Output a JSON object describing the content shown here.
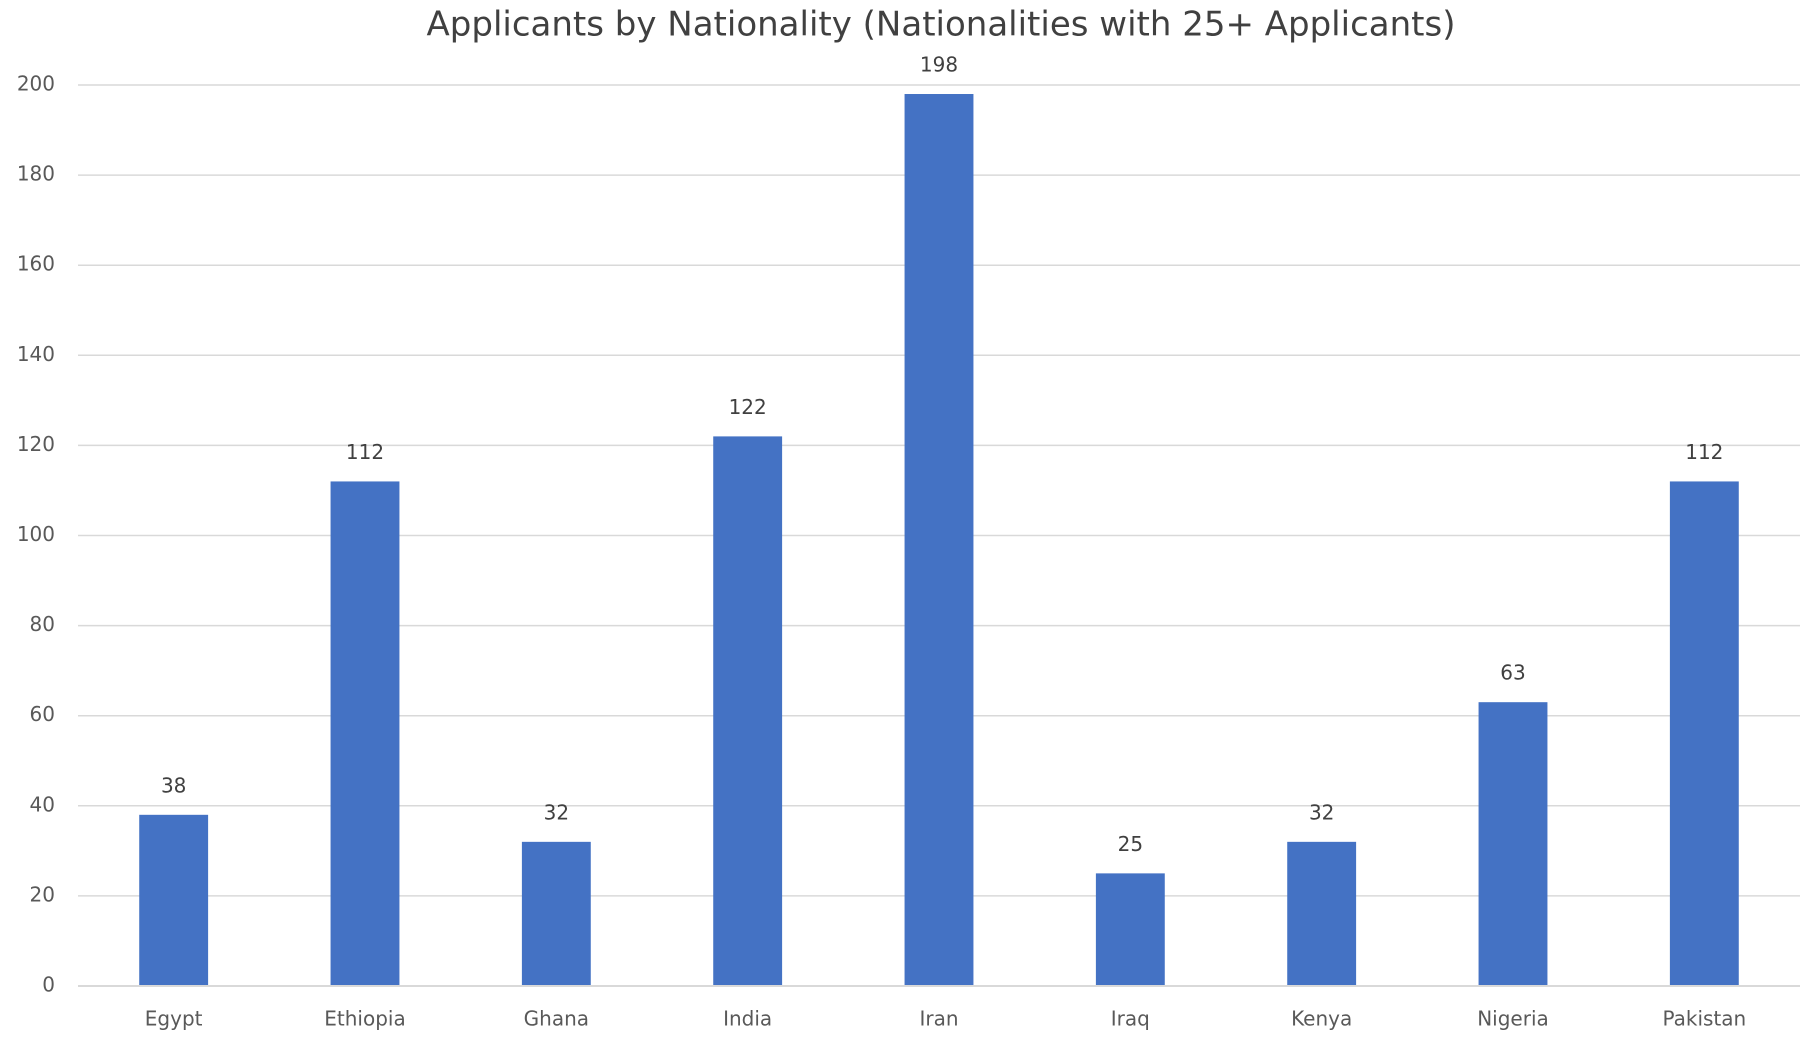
{
  "chart_data": {
    "type": "bar",
    "title": "Applicants by Nationality (Nationalities with 25+ Applicants)",
    "categories": [
      "Egypt",
      "Ethiopia",
      "Ghana",
      "India",
      "Iran",
      "Iraq",
      "Kenya",
      "Nigeria",
      "Pakistan"
    ],
    "values": [
      38,
      112,
      32,
      122,
      198,
      25,
      32,
      63,
      112
    ],
    "color": "#4472c4",
    "ylim": [
      0,
      200
    ],
    "yticks": [
      0,
      20,
      40,
      60,
      80,
      100,
      120,
      140,
      160,
      180,
      200
    ],
    "grid": true
  }
}
